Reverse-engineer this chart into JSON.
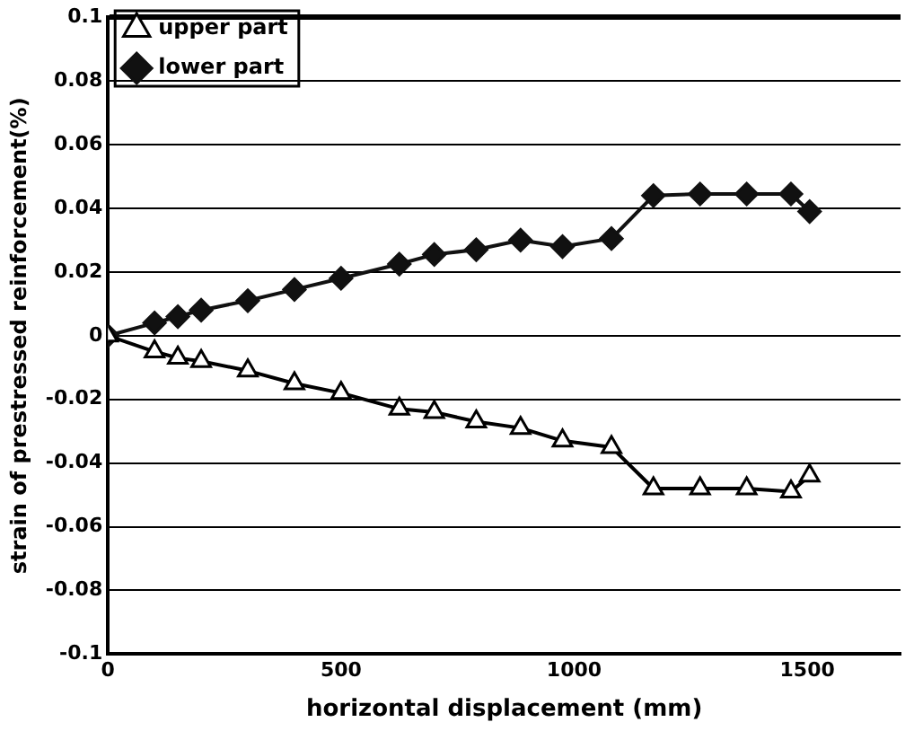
{
  "chart_data": {
    "type": "line",
    "xlabel": "horizontal displacement (mm)",
    "ylabel": "strain of prestressed reinforcement(%)",
    "xlim": [
      0,
      1700
    ],
    "xticks": [
      0,
      500,
      1000,
      1500
    ],
    "ylim": [
      -0.1,
      0.1
    ],
    "yticks": [
      -0.1,
      -0.08,
      -0.06,
      -0.04,
      -0.02,
      0,
      0.02,
      0.04,
      0.06,
      0.08,
      0.1
    ],
    "grid": "y",
    "legend": "top left",
    "line_style": "solid",
    "series": [
      {
        "name": "upper part",
        "color": "#000000",
        "marker": "triangle",
        "x": [
          0,
          100,
          150,
          200,
          300,
          400,
          500,
          625,
          700,
          790,
          885,
          975,
          1080,
          1170,
          1270,
          1370,
          1465,
          1505
        ],
        "values": [
          0,
          -0.005,
          -0.007,
          -0.008,
          -0.011,
          -0.015,
          -0.018,
          -0.023,
          -0.024,
          -0.027,
          -0.029,
          -0.033,
          -0.035,
          -0.048,
          -0.048,
          -0.048,
          -0.049,
          -0.044
        ]
      },
      {
        "name": "lower part",
        "color": "#111111",
        "marker": "diamond",
        "x": [
          0,
          100,
          150,
          200,
          300,
          400,
          500,
          625,
          700,
          790,
          885,
          975,
          1080,
          1170,
          1270,
          1370,
          1465,
          1505
        ],
        "values": [
          0,
          0.004,
          0.006,
          0.008,
          0.011,
          0.0145,
          0.018,
          0.0225,
          0.0255,
          0.027,
          0.03,
          0.028,
          0.0305,
          0.044,
          0.0445,
          0.0445,
          0.0445,
          0.039
        ]
      }
    ]
  }
}
